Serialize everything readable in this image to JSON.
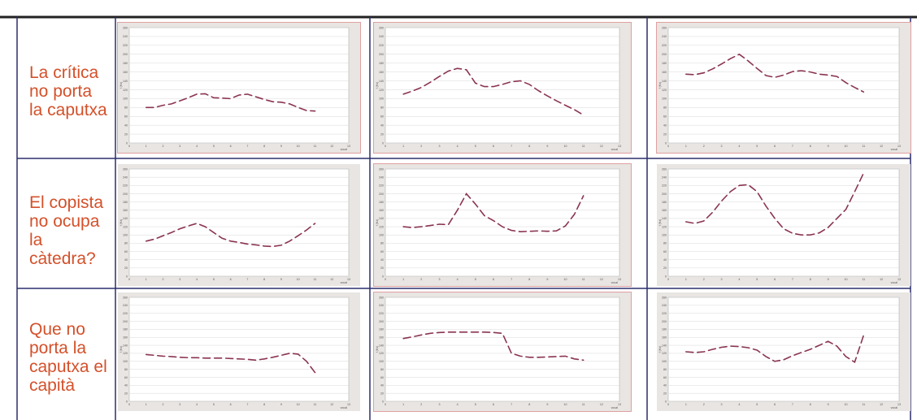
{
  "rows": [
    {
      "label": "La crítica\nno porta\nla caputxa"
    },
    {
      "label": "El copista\nno ocupa\nla\ncàtedra?"
    },
    {
      "label": "Que no\nporta la\ncaputxa el\ncapità"
    }
  ],
  "colors": {
    "label_text": "#d4502a",
    "table_border": "#2b2f6b",
    "panel_bg": "#e8e5e2",
    "panel_border_red": "#e0a0a0",
    "plot_bg": "#ffffff",
    "series": "#8a3450"
  },
  "chart_data": [
    {
      "type": "line",
      "row": 0,
      "col": 0,
      "ylim": [
        0,
        260
      ],
      "xlim": [
        0,
        13
      ],
      "yticks": [
        "0",
        "20",
        "40",
        "60",
        "80",
        "100",
        "120",
        "140",
        "160",
        "180",
        "200",
        "220",
        "240",
        "260"
      ],
      "xticks": [
        "0",
        "1",
        "2",
        "3",
        "4",
        "5",
        "6",
        "7",
        "8",
        "9",
        "10",
        "11",
        "12",
        "13"
      ],
      "ylabel": "f (Hz)",
      "xlabel": "vocal",
      "points": [
        [
          1,
          80
        ],
        [
          1.5,
          80
        ],
        [
          2,
          85
        ],
        [
          2.5,
          88
        ],
        [
          3,
          95
        ],
        [
          3.5,
          102
        ],
        [
          4,
          110
        ],
        [
          4.5,
          111
        ],
        [
          5,
          102
        ],
        [
          5.5,
          101
        ],
        [
          6,
          100
        ],
        [
          6.5,
          108
        ],
        [
          7,
          110
        ],
        [
          7.5,
          104
        ],
        [
          8,
          98
        ],
        [
          8.5,
          93
        ],
        [
          9,
          92
        ],
        [
          9.5,
          88
        ],
        [
          10,
          80
        ],
        [
          10.5,
          73
        ],
        [
          11,
          72
        ]
      ]
    },
    {
      "type": "line",
      "row": 0,
      "col": 1,
      "ylim": [
        0,
        260
      ],
      "xlim": [
        0,
        13
      ],
      "yticks": [
        "0",
        "20",
        "40",
        "60",
        "80",
        "100",
        "120",
        "140",
        "160",
        "180",
        "200",
        "220",
        "240",
        "260"
      ],
      "xticks": [
        "0",
        "1",
        "2",
        "3",
        "4",
        "5",
        "6",
        "7",
        "8",
        "9",
        "10",
        "11",
        "12",
        "13"
      ],
      "ylabel": "f (Hz)",
      "xlabel": "vocal",
      "points": [
        [
          1,
          110
        ],
        [
          1.5,
          117
        ],
        [
          2,
          125
        ],
        [
          2.5,
          137
        ],
        [
          3,
          150
        ],
        [
          3.5,
          162
        ],
        [
          4,
          168
        ],
        [
          4.5,
          165
        ],
        [
          5,
          135
        ],
        [
          5.5,
          127
        ],
        [
          6,
          127
        ],
        [
          6.5,
          132
        ],
        [
          7,
          138
        ],
        [
          7.5,
          140
        ],
        [
          8,
          132
        ],
        [
          8.5,
          118
        ],
        [
          9,
          106
        ],
        [
          9.5,
          95
        ],
        [
          10,
          85
        ],
        [
          10.5,
          75
        ],
        [
          11,
          63
        ]
      ]
    },
    {
      "type": "line",
      "row": 0,
      "col": 2,
      "ylim": [
        0,
        260
      ],
      "xlim": [
        0,
        13
      ],
      "yticks": [
        "0",
        "20",
        "40",
        "60",
        "80",
        "100",
        "120",
        "140",
        "160",
        "180",
        "200",
        "220",
        "240",
        "260"
      ],
      "xticks": [
        "0",
        "1",
        "2",
        "3",
        "4",
        "5",
        "6",
        "7",
        "8",
        "9",
        "10",
        "11",
        "12",
        "13"
      ],
      "ylabel": "f (Hz)",
      "xlabel": "vocal",
      "points": [
        [
          1,
          155
        ],
        [
          1.5,
          154
        ],
        [
          2,
          158
        ],
        [
          2.5,
          167
        ],
        [
          3,
          178
        ],
        [
          3.5,
          190
        ],
        [
          4,
          200
        ],
        [
          4.5,
          185
        ],
        [
          5,
          168
        ],
        [
          5.5,
          152
        ],
        [
          6,
          148
        ],
        [
          6.5,
          153
        ],
        [
          7,
          161
        ],
        [
          7.5,
          163
        ],
        [
          8,
          160
        ],
        [
          8.5,
          155
        ],
        [
          9,
          153
        ],
        [
          9.5,
          150
        ],
        [
          10,
          136
        ],
        [
          10.5,
          125
        ],
        [
          11,
          115
        ]
      ]
    },
    {
      "type": "line",
      "row": 1,
      "col": 0,
      "ylim": [
        0,
        260
      ],
      "xlim": [
        0,
        13
      ],
      "yticks": [
        "0",
        "20",
        "40",
        "60",
        "80",
        "100",
        "120",
        "140",
        "160",
        "180",
        "200",
        "220",
        "240",
        "260"
      ],
      "xticks": [
        "0",
        "1",
        "2",
        "3",
        "4",
        "5",
        "6",
        "7",
        "8",
        "9",
        "10",
        "11",
        "12",
        "13"
      ],
      "ylabel": "f (Hz)",
      "xlabel": "vocal",
      "points": [
        [
          1,
          85
        ],
        [
          1.5,
          90
        ],
        [
          2,
          98
        ],
        [
          2.5,
          106
        ],
        [
          3,
          115
        ],
        [
          3.5,
          122
        ],
        [
          4,
          128
        ],
        [
          4.5,
          120
        ],
        [
          5,
          106
        ],
        [
          5.5,
          92
        ],
        [
          6,
          85
        ],
        [
          6.5,
          82
        ],
        [
          7,
          78
        ],
        [
          7.5,
          76
        ],
        [
          8,
          73
        ],
        [
          8.5,
          72
        ],
        [
          9,
          75
        ],
        [
          9.5,
          85
        ],
        [
          10,
          98
        ],
        [
          10.5,
          112
        ],
        [
          11,
          128
        ]
      ]
    },
    {
      "type": "line",
      "row": 1,
      "col": 1,
      "ylim": [
        0,
        260
      ],
      "xlim": [
        0,
        13
      ],
      "yticks": [
        "0",
        "20",
        "40",
        "60",
        "80",
        "100",
        "120",
        "140",
        "160",
        "180",
        "200",
        "220",
        "240",
        "260"
      ],
      "xticks": [
        "0",
        "1",
        "2",
        "3",
        "4",
        "5",
        "6",
        "7",
        "8",
        "9",
        "10",
        "11",
        "12",
        "13"
      ],
      "ylabel": "f (Hz)",
      "xlabel": "vocal",
      "points": [
        [
          1,
          120
        ],
        [
          1.5,
          118
        ],
        [
          2,
          120
        ],
        [
          2.5,
          123
        ],
        [
          3,
          126
        ],
        [
          3.5,
          125
        ],
        [
          4,
          160
        ],
        [
          4.5,
          200
        ],
        [
          5,
          175
        ],
        [
          5.5,
          147
        ],
        [
          6,
          135
        ],
        [
          6.5,
          120
        ],
        [
          7,
          111
        ],
        [
          7.5,
          108
        ],
        [
          8,
          109
        ],
        [
          8.5,
          110
        ],
        [
          9,
          109
        ],
        [
          9.5,
          110
        ],
        [
          10,
          122
        ],
        [
          10.5,
          150
        ],
        [
          11,
          195
        ]
      ]
    },
    {
      "type": "line",
      "row": 1,
      "col": 2,
      "ylim": [
        0,
        260
      ],
      "xlim": [
        0,
        13
      ],
      "yticks": [
        "0",
        "20",
        "40",
        "60",
        "80",
        "100",
        "120",
        "140",
        "160",
        "180",
        "200",
        "220",
        "240",
        "260"
      ],
      "xticks": [
        "0",
        "1",
        "2",
        "3",
        "4",
        "5",
        "6",
        "7",
        "8",
        "9",
        "10",
        "11",
        "12",
        "13"
      ],
      "ylabel": "f (Hz)",
      "xlabel": "vocal",
      "points": [
        [
          1,
          132
        ],
        [
          1.5,
          128
        ],
        [
          2,
          134
        ],
        [
          2.5,
          155
        ],
        [
          3,
          182
        ],
        [
          3.5,
          205
        ],
        [
          4,
          220
        ],
        [
          4.5,
          222
        ],
        [
          5,
          205
        ],
        [
          5.5,
          170
        ],
        [
          6,
          140
        ],
        [
          6.5,
          115
        ],
        [
          7,
          104
        ],
        [
          7.5,
          100
        ],
        [
          8,
          100
        ],
        [
          8.5,
          105
        ],
        [
          9,
          118
        ],
        [
          9.5,
          140
        ],
        [
          10,
          162
        ],
        [
          10.5,
          205
        ],
        [
          11,
          250
        ]
      ]
    },
    {
      "type": "line",
      "row": 2,
      "col": 0,
      "ylim": [
        0,
        260
      ],
      "xlim": [
        0,
        13
      ],
      "yticks": [
        "0",
        "20",
        "40",
        "60",
        "80",
        "100",
        "120",
        "140",
        "160",
        "180",
        "200",
        "220",
        "240",
        "260"
      ],
      "xticks": [
        "0",
        "1",
        "2",
        "3",
        "4",
        "5",
        "6",
        "7",
        "8",
        "9",
        "10",
        "11",
        "12",
        "13"
      ],
      "ylabel": "f (Hz)",
      "xlabel": "vocal",
      "points": [
        [
          1,
          117
        ],
        [
          1.5,
          115
        ],
        [
          2,
          113
        ],
        [
          2.5,
          112
        ],
        [
          3,
          110
        ],
        [
          3.5,
          109
        ],
        [
          4,
          109
        ],
        [
          4.5,
          108
        ],
        [
          5,
          108
        ],
        [
          5.5,
          108
        ],
        [
          6,
          107
        ],
        [
          6.5,
          106
        ],
        [
          7,
          105
        ],
        [
          7.5,
          103
        ],
        [
          8,
          106
        ],
        [
          8.5,
          110
        ],
        [
          9,
          115
        ],
        [
          9.5,
          120
        ],
        [
          10,
          118
        ],
        [
          10.5,
          100
        ],
        [
          11,
          72
        ]
      ]
    },
    {
      "type": "line",
      "row": 2,
      "col": 1,
      "ylim": [
        0,
        260
      ],
      "xlim": [
        0,
        13
      ],
      "yticks": [
        "0",
        "20",
        "40",
        "60",
        "80",
        "100",
        "120",
        "140",
        "160",
        "180",
        "200",
        "220",
        "240",
        "260"
      ],
      "xticks": [
        "0",
        "1",
        "2",
        "3",
        "4",
        "5",
        "6",
        "7",
        "8",
        "9",
        "10",
        "11",
        "12",
        "13"
      ],
      "ylabel": "f (Hz)",
      "xlabel": "vocal",
      "points": [
        [
          1,
          157
        ],
        [
          1.5,
          161
        ],
        [
          2,
          166
        ],
        [
          2.5,
          170
        ],
        [
          3,
          172
        ],
        [
          3.5,
          173
        ],
        [
          4,
          173
        ],
        [
          4.5,
          173
        ],
        [
          5,
          173
        ],
        [
          5.5,
          173
        ],
        [
          6,
          172
        ],
        [
          6.5,
          170
        ],
        [
          7,
          120
        ],
        [
          7.5,
          113
        ],
        [
          8,
          110
        ],
        [
          8.5,
          110
        ],
        [
          9,
          111
        ],
        [
          9.5,
          112
        ],
        [
          10,
          113
        ],
        [
          10.5,
          106
        ],
        [
          11,
          103
        ]
      ]
    },
    {
      "type": "line",
      "row": 2,
      "col": 2,
      "ylim": [
        0,
        260
      ],
      "xlim": [
        0,
        13
      ],
      "yticks": [
        "0",
        "20",
        "40",
        "60",
        "80",
        "100",
        "120",
        "140",
        "160",
        "180",
        "200",
        "220",
        "240",
        "260"
      ],
      "xticks": [
        "0",
        "1",
        "2",
        "3",
        "4",
        "5",
        "6",
        "7",
        "8",
        "9",
        "10",
        "11",
        "12",
        "13"
      ],
      "ylabel": "f (Hz)",
      "xlabel": "vocal",
      "points": [
        [
          1,
          124
        ],
        [
          1.5,
          122
        ],
        [
          2,
          124
        ],
        [
          2.5,
          130
        ],
        [
          3,
          135
        ],
        [
          3.5,
          138
        ],
        [
          4,
          137
        ],
        [
          4.5,
          134
        ],
        [
          5,
          128
        ],
        [
          5.5,
          112
        ],
        [
          6,
          100
        ],
        [
          6.5,
          104
        ],
        [
          7,
          114
        ],
        [
          7.5,
          122
        ],
        [
          8,
          130
        ],
        [
          8.5,
          140
        ],
        [
          9,
          150
        ],
        [
          9.5,
          138
        ],
        [
          10,
          112
        ],
        [
          10.5,
          98
        ],
        [
          11,
          165
        ]
      ]
    }
  ]
}
